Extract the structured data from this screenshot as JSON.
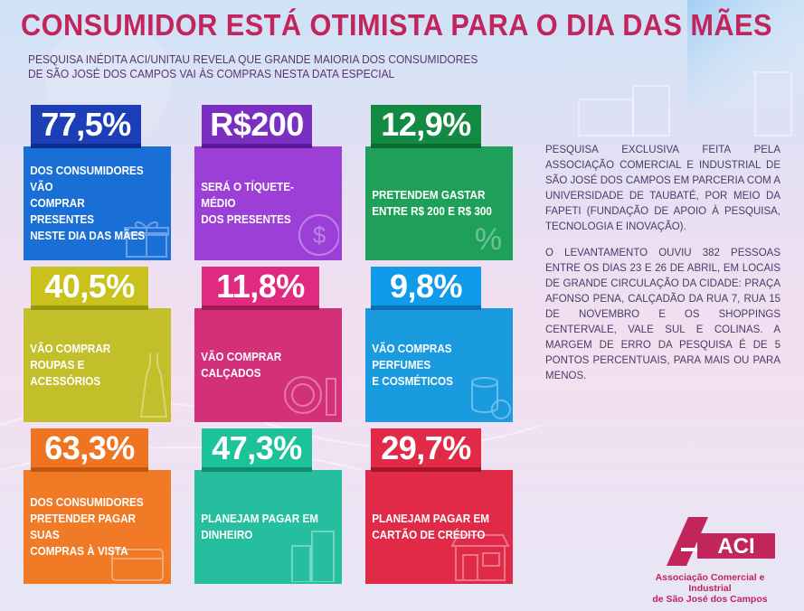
{
  "title": "CONSUMIDOR ESTÁ OTIMISTA PARA O DIA DAS MÃES",
  "subtitle_line1": "PESQUISA INÉDITA ACI/UNITAU REVELA QUE GRANDE MAIORIA DOS CONSUMIDORES",
  "subtitle_line2": "DE SÃO JOSÉ DOS CAMPOS VAI ÀS COMPRAS NESTA DATA ESPECIAL",
  "cards": [
    {
      "stat": "77,5%",
      "text": "DOS CONSUMIDORES VÃO\nCOMPRAR PRESENTES\nNESTE DIA DAS MÃES",
      "icon": "gift-icon",
      "color": "#1a6fd6",
      "stat_color": "#1c3fb8",
      "stripe": "#0a2e8f"
    },
    {
      "stat": "R$200",
      "text": "SERÁ O TÍQUETE-MÉDIO\nDOS PRESENTES",
      "icon": "dollar-coin-icon",
      "color": "#9b3fd6",
      "stat_color": "#7b2fc2",
      "stripe": "#5b1a9a"
    },
    {
      "stat": "12,9%",
      "text": "PRETENDEM GASTAR\nENTRE R$ 200 E R$ 300",
      "icon": "percent-tag-icon",
      "color": "#1fa05a",
      "stat_color": "#138a44",
      "stripe": "#0a6a30"
    },
    {
      "stat": "40,5%",
      "text": "VÃO COMPRAR ROUPAS E\nACESSÓRIOS",
      "icon": "dress-icon",
      "color": "#c2bf2a",
      "stat_color": "#c9c21c",
      "stripe": "#9a9410"
    },
    {
      "stat": "11,8%",
      "text": "VÃO COMPRAR CALÇADOS",
      "icon": "makeup-icon",
      "color": "#d4307a",
      "stat_color": "#e02a80",
      "stripe": "#a01a58"
    },
    {
      "stat": "9,8%",
      "text": "VÃO COMPRAS PERFUMES\nE COSMÉTICOS",
      "icon": "coins-icon",
      "color": "#1a9be0",
      "stat_color": "#0f9bea",
      "stripe": "#0a6fb0"
    },
    {
      "stat": "63,3%",
      "text": "DOS CONSUMIDORES\nPRETENDER PAGAR SUAS\nCOMPRAS À VISTA",
      "icon": "credit-card-icon",
      "color": "#f07a26",
      "stat_color": "#ee7422",
      "stripe": "#c25510"
    },
    {
      "stat": "47,3%",
      "text": "PLANEJAM PAGAR EM\nDINHEIRO",
      "icon": "buildings-icon",
      "color": "#25bfa0",
      "stat_color": "#1cc29a",
      "stripe": "#0e8e70"
    },
    {
      "stat": "29,7%",
      "text": "PLANEJAM PAGAR EM\nCARTÃO DE CRÉDITO",
      "icon": "storefront-icon",
      "color": "#e02a48",
      "stat_color": "#e02a48",
      "stripe": "#a8142e"
    }
  ],
  "side_paragraph_1": "PESQUISA EXCLUSIVA FEITA PELA ASSOCIAÇÃO COMERCIAL E INDUSTRIAL DE SÃO JOSÉ DOS CAMPOS EM PARCERIA COM A UNIVERSIDADE DE TAUBATÉ, POR MEIO DA FAPETI (FUNDAÇÃO DE APOIO À PESQUISA, TECNOLOGIA E INOVAÇÃO).",
  "side_paragraph_2": "O LEVANTAMENTO OUVIU 382 PESSOAS ENTRE OS DIAS 23 E 26 DE ABRIL, EM LOCAIS DE GRANDE CIRCULAÇÃO DA CIDADE: PRAÇA AFONSO PENA, CALÇADÃO DA RUA 7, RUA 15 DE NOVEMBRO E OS SHOPPINGS CENTERVALE, VALE SUL E COLINAS. A MARGEM DE ERRO DA PESQUISA É DE 5 PONTOS PERCENTUAIS, PARA MAIS OU PARA MENOS.",
  "logo_text": "ACI",
  "logo_caption_line1": "Associação Comercial e Industrial",
  "logo_caption_line2": "de São José dos Campos"
}
